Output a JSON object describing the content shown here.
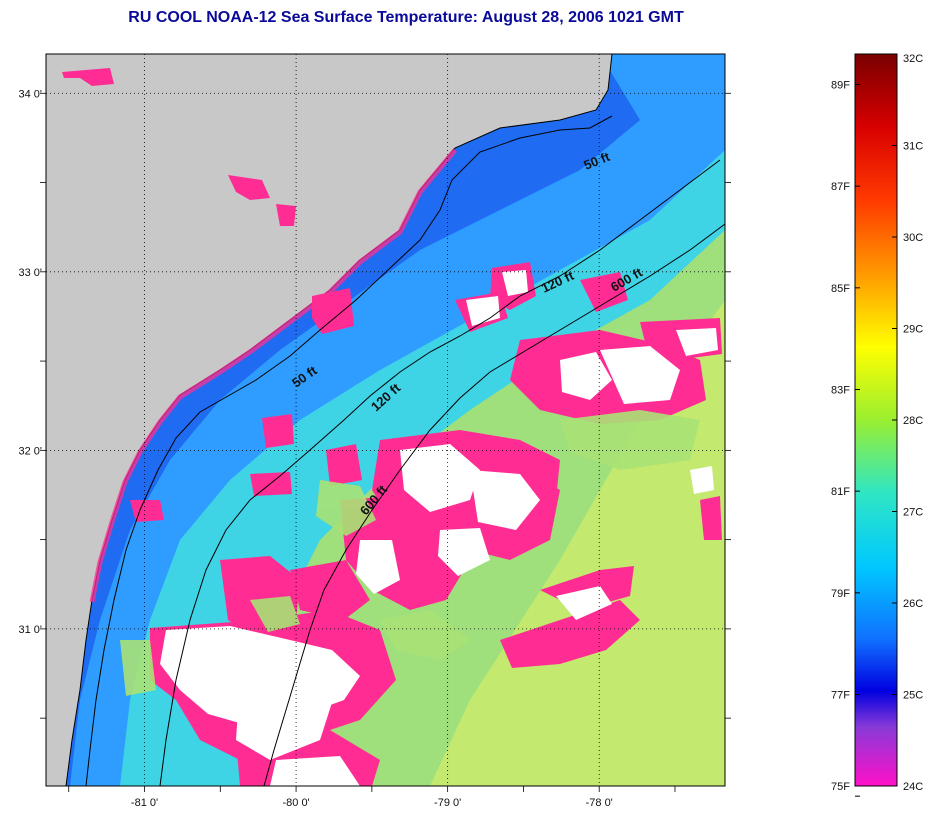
{
  "title": "RU COOL  NOAA-12  Sea Surface Temperature:  August 28, 2006 1021 GMT",
  "map": {
    "lon_range": [
      -81.65,
      -77.17
    ],
    "lat_range": [
      30.12,
      34.22
    ],
    "x_ticks": [
      {
        "value": -81,
        "label": "-81 0'"
      },
      {
        "value": -80,
        "label": "-80 0'"
      },
      {
        "value": -79,
        "label": "-79 0'"
      },
      {
        "value": -78,
        "label": "-78 0'"
      }
    ],
    "y_ticks": [
      {
        "value": 34,
        "label": "34 0'"
      },
      {
        "value": 33,
        "label": "33 0'"
      },
      {
        "value": 32,
        "label": "32 0'"
      },
      {
        "value": 31,
        "label": "31 0'"
      }
    ],
    "contour_labels": [
      "50 ft",
      "120 ft",
      "600 ft",
      "50 ft",
      "120 ft",
      "600 ft"
    ],
    "colors": {
      "land": "#c8c8c8",
      "cloud": "#ffffff",
      "cold": "#ff2d93",
      "shelf_blue": "#1e6cff",
      "mid_blue": "#33a6ff",
      "cyan": "#38d8ea",
      "green": "#a6e67a",
      "yellowgreen": "#c6ec6a"
    }
  },
  "colorbar": {
    "c_labels": [
      "32C",
      "31C",
      "30C",
      "29C",
      "28C",
      "27C",
      "26C",
      "25C",
      "24C"
    ],
    "f_labels": [
      "89F",
      "87F",
      "85F",
      "83F",
      "81F",
      "79F",
      "77F",
      "75F"
    ]
  }
}
